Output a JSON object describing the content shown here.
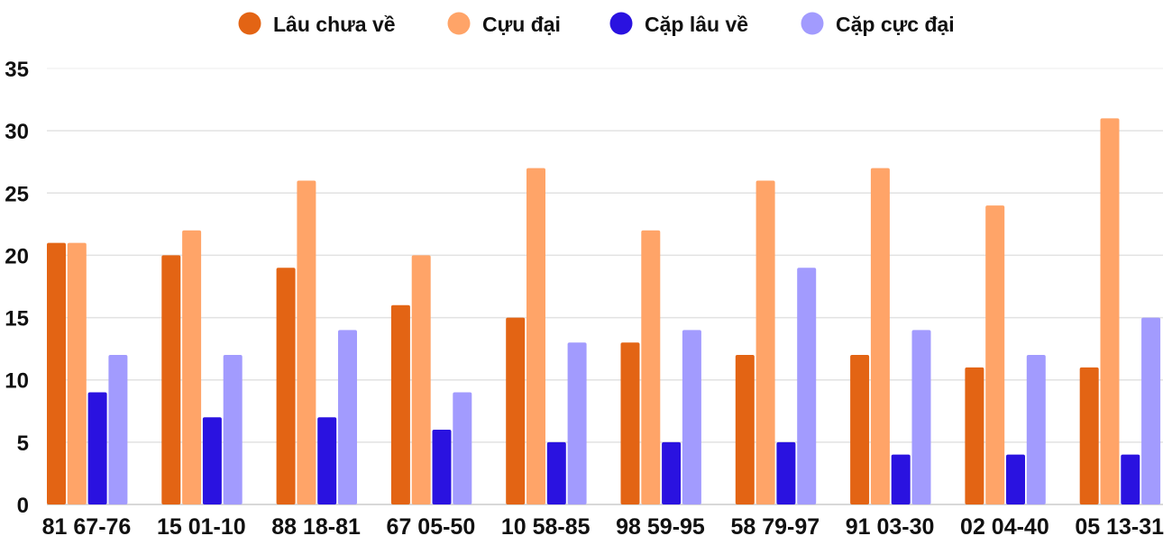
{
  "chart_data": {
    "type": "bar",
    "title": "",
    "xlabel": "",
    "ylabel": "",
    "ylim": [
      0,
      35
    ],
    "yticks": [
      0,
      5,
      10,
      15,
      20,
      25,
      30,
      35
    ],
    "grid": true,
    "legend_position": "top-center",
    "categories": [
      "81 67-76",
      "15 01-10",
      "88 18-81",
      "67 05-50",
      "10 58-85",
      "98 59-95",
      "58 79-97",
      "91 03-30",
      "02 04-40",
      "05 13-31"
    ],
    "series": [
      {
        "name": "Lâu chưa về",
        "color": "#e36414",
        "values": [
          21,
          20,
          19,
          16,
          15,
          13,
          12,
          12,
          11,
          11
        ]
      },
      {
        "name": "Cựu đại",
        "color": "#ffa468",
        "values": [
          21,
          22,
          26,
          20,
          27,
          22,
          26,
          27,
          24,
          31
        ]
      },
      {
        "name": "Cặp lâu về",
        "color": "#2a12e0",
        "values": [
          9,
          7,
          7,
          6,
          5,
          5,
          5,
          4,
          4,
          4
        ]
      },
      {
        "name": "Cặp cực đại",
        "color": "#a29bfe",
        "values": [
          12,
          12,
          14,
          9,
          13,
          14,
          19,
          14,
          12,
          15
        ]
      }
    ]
  }
}
